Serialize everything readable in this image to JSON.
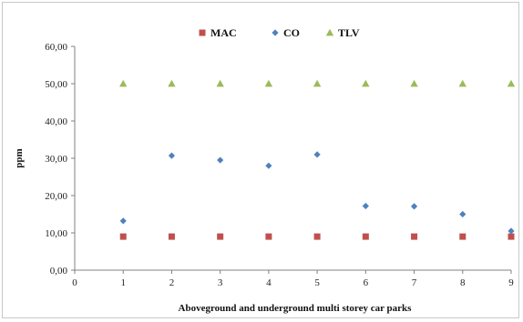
{
  "chart_data": {
    "type": "scatter",
    "title": "",
    "xlabel": "Aboveground and underground multi storey car parks",
    "ylabel": "ppm",
    "xlim": [
      0,
      9
    ],
    "ylim": [
      0,
      60
    ],
    "x_ticks": [
      "0",
      "1",
      "2",
      "3",
      "4",
      "5",
      "6",
      "7",
      "8",
      "9"
    ],
    "y_ticks": [
      "0,00",
      "10,00",
      "20,00",
      "30,00",
      "40,00",
      "50,00",
      "60,00"
    ],
    "y_tick_values": [
      0,
      10,
      20,
      30,
      40,
      50,
      60
    ],
    "grid": false,
    "legend_position": "top",
    "x": [
      1,
      2,
      3,
      4,
      5,
      6,
      7,
      8,
      9
    ],
    "series": [
      {
        "name": "MAC",
        "marker": "square",
        "color": "#c0504d",
        "values": [
          9,
          9,
          9,
          9,
          9,
          9,
          9,
          9,
          9
        ]
      },
      {
        "name": "CO",
        "marker": "diamond",
        "color": "#4f81bd",
        "values": [
          13.2,
          30.7,
          29.5,
          28.0,
          31.0,
          17.2,
          17.1,
          15.0,
          10.5
        ]
      },
      {
        "name": "TLV",
        "marker": "triangle",
        "color": "#9bbb59",
        "values": [
          50,
          50,
          50,
          50,
          50,
          50,
          50,
          50,
          50
        ]
      }
    ]
  }
}
